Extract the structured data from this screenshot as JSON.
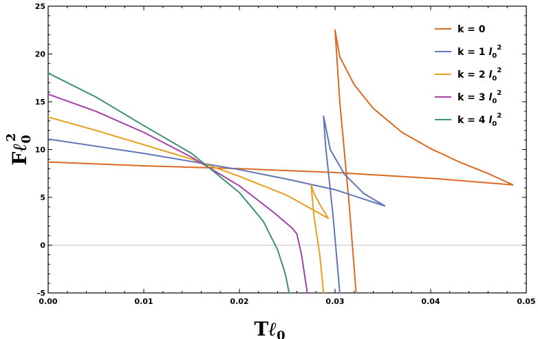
{
  "chart_data": {
    "type": "line",
    "xlim": [
      0,
      0.05
    ],
    "ylim": [
      -5,
      25
    ],
    "x_ticks": [
      "0.00",
      "0.01",
      "0.02",
      "0.03",
      "0.04",
      "0.05"
    ],
    "x_tick_values": [
      0,
      0.01,
      0.02,
      0.03,
      0.04,
      0.05
    ],
    "y_ticks": [
      "-5",
      "0",
      "5",
      "10",
      "15",
      "20",
      "25"
    ],
    "y_tick_values": [
      -5,
      0,
      5,
      10,
      15,
      20,
      25
    ],
    "xlabel": {
      "main": "T",
      "letter": "ℓ",
      "sub": "0"
    },
    "ylabel": {
      "main": "F",
      "letter": "ℓ",
      "sub": "0",
      "sup": "2"
    },
    "legend_position": "top-right",
    "series": [
      {
        "name": "k = 0",
        "legend": {
          "text": "k = 0",
          "unit": "",
          "unit_sup": ""
        },
        "color": "#d9691f",
        "x": [
          0.0,
          0.01,
          0.02,
          0.03,
          0.04,
          0.0486,
          0.046,
          0.043,
          0.04,
          0.037,
          0.034,
          0.032,
          0.0305,
          0.03,
          0.0305,
          0.0315,
          0.0322
        ],
        "y": [
          8.7,
          8.3,
          8.0,
          7.6,
          7.0,
          6.3,
          7.5,
          8.7,
          10.1,
          11.8,
          14.3,
          16.8,
          19.7,
          22.5,
          15.0,
          4.0,
          -5.0
        ]
      },
      {
        "name": "k = 1 l0^2",
        "legend": {
          "text": "k = 1 ",
          "unit": "l",
          "unit_sub": "0",
          "unit_sup": "2"
        },
        "color": "#5e76b8",
        "x": [
          0.0,
          0.01,
          0.02,
          0.025,
          0.03,
          0.0352,
          0.033,
          0.031,
          0.0295,
          0.0288,
          0.029,
          0.0298,
          0.0305
        ],
        "y": [
          11.1,
          9.6,
          7.9,
          6.9,
          5.8,
          4.1,
          5.4,
          7.4,
          10.0,
          13.5,
          10.5,
          3.0,
          -5.0
        ]
      },
      {
        "name": "k = 2 l0^2",
        "legend": {
          "text": "k = 2 ",
          "unit": "l",
          "unit_sub": "0",
          "unit_sup": "2"
        },
        "color": "#e99c1d",
        "x": [
          0.0,
          0.005,
          0.01,
          0.015,
          0.02,
          0.025,
          0.0293,
          0.0285,
          0.0278,
          0.0275,
          0.0278,
          0.0284,
          0.0288
        ],
        "y": [
          13.4,
          12.0,
          10.5,
          9.0,
          7.2,
          5.2,
          2.8,
          4.1,
          5.4,
          6.3,
          3.0,
          -1.0,
          -5.0
        ]
      },
      {
        "name": "k = 3 l0^2",
        "legend": {
          "text": "k = 3 ",
          "unit": "l",
          "unit_sub": "0",
          "unit_sup": "2"
        },
        "color": "#a53fa8",
        "x": [
          0.0,
          0.005,
          0.01,
          0.015,
          0.02,
          0.0235,
          0.0255,
          0.026,
          0.0265,
          0.0268,
          0.0271
        ],
        "y": [
          15.8,
          14.0,
          11.8,
          9.2,
          6.2,
          3.5,
          1.8,
          1.2,
          -1.0,
          -3.0,
          -5.0
        ]
      },
      {
        "name": "k = 4 l0^2",
        "legend": {
          "text": "k = 4 ",
          "unit": "l",
          "unit_sub": "0",
          "unit_sup": "2"
        },
        "color": "#3d8e78",
        "x": [
          0.0,
          0.005,
          0.01,
          0.015,
          0.02,
          0.0225,
          0.024,
          0.0248,
          0.0252
        ],
        "y": [
          18.0,
          15.5,
          12.5,
          9.6,
          5.5,
          2.5,
          -0.5,
          -3.0,
          -5.0
        ]
      }
    ]
  }
}
